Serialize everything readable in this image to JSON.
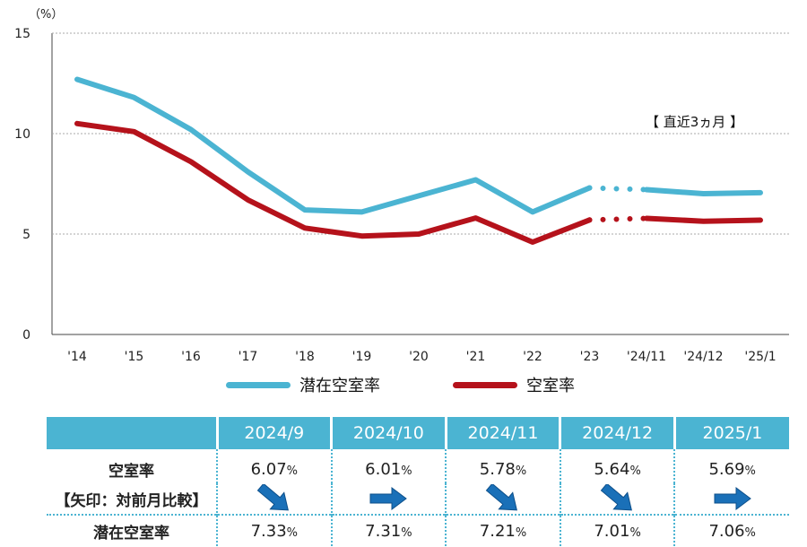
{
  "chart_data": {
    "type": "line",
    "unit_label": "（%）",
    "y_ticks": [
      "0",
      "5",
      "10",
      "15"
    ],
    "ylim": [
      0,
      15
    ],
    "categories": [
      "'14",
      "'15",
      "'16",
      "'17",
      "'18",
      "'19",
      "'20",
      "'21",
      "'22",
      "'23",
      "'24/11",
      "'24/12",
      "'25/1"
    ],
    "grid": true,
    "annotation": "【 直近3ヵ月 】",
    "series": [
      {
        "name": "潜在空室率",
        "color": "#4bb4d2",
        "values": [
          12.7,
          11.8,
          10.2,
          8.1,
          6.2,
          6.1,
          6.9,
          7.7,
          6.1,
          7.3,
          7.21,
          7.01,
          7.06
        ]
      },
      {
        "name": "空室率",
        "color": "#b5121b",
        "values": [
          10.5,
          10.1,
          8.6,
          6.7,
          5.3,
          4.9,
          5.0,
          5.8,
          4.6,
          5.7,
          5.78,
          5.64,
          5.69
        ]
      }
    ]
  },
  "legend": [
    {
      "label": "潜在空室率",
      "color": "#4bb4d2"
    },
    {
      "label": "空室率",
      "color": "#b5121b"
    }
  ],
  "table": {
    "columns": [
      "2024/9",
      "2024/10",
      "2024/11",
      "2024/12",
      "2025/1"
    ],
    "vacancy_label": "空室率",
    "arrow_note": "【矢印：対前月比較】",
    "potential_label": "潜在空室率",
    "pct": "%",
    "vacancy": [
      "6.07",
      "6.01",
      "5.78",
      "5.64",
      "5.69"
    ],
    "potential": [
      "7.33",
      "7.31",
      "7.21",
      "7.01",
      "7.06"
    ],
    "arrows": [
      "down-right",
      "right",
      "down-right",
      "down-right",
      "right"
    ],
    "arrow_color": "#1a70b8"
  }
}
